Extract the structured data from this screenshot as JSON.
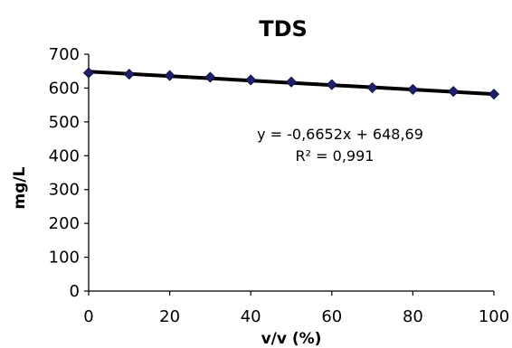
{
  "chart_data": {
    "type": "scatter",
    "title": "TDS",
    "xlabel": "v/v (%)",
    "ylabel": "mg/L",
    "xlim": [
      0,
      100
    ],
    "ylim": [
      0,
      700
    ],
    "x_ticks": [
      "0",
      "20",
      "40",
      "60",
      "80",
      "100"
    ],
    "y_ticks": [
      "0",
      "100",
      "200",
      "300",
      "400",
      "500",
      "600",
      "700"
    ],
    "grid": false,
    "legend": "none",
    "series": [
      {
        "x": [
          0,
          10,
          20,
          30,
          40,
          50,
          60,
          70,
          80,
          90,
          100
        ],
        "y": [
          645,
          641,
          637,
          632,
          624,
          618,
          610,
          601,
          596,
          590,
          582
        ],
        "marker": "diamond",
        "marker_color": "#1f1f6b"
      }
    ],
    "trendline": {
      "slope": -0.6652,
      "intercept": 648.69,
      "color": "#000000",
      "equation_label": "y = -0,6652x + 648,69",
      "r2_label": "R² = 0,991"
    }
  }
}
